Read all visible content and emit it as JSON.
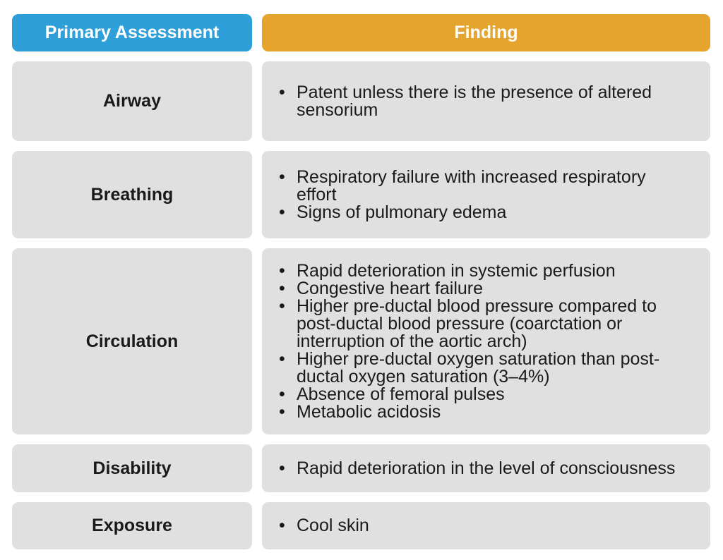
{
  "colors": {
    "page_bg": "#ffffff",
    "primary_header_bg": "#2e9fd9",
    "finding_header_bg": "#e4a42e",
    "header_text": "#ffffff",
    "cell_bg": "#e0e0e0",
    "body_text": "#1a1a1a"
  },
  "table": {
    "headers": [
      {
        "id": "primary-assessment",
        "label": "Primary Assessment"
      },
      {
        "id": "finding",
        "label": "Finding"
      }
    ],
    "bullet_glyph": "•",
    "rows": [
      {
        "assessment": "Airway",
        "findings": [
          "Patent unless there is the presence of altered sensorium"
        ]
      },
      {
        "assessment": "Breathing",
        "findings": [
          "Respiratory failure with increased respiratory effort",
          "Signs of pulmonary edema"
        ]
      },
      {
        "assessment": "Circulation",
        "findings": [
          "Rapid deterioration in systemic perfusion",
          "Congestive heart failure",
          "Higher pre-ductal blood pressure compared to post-ductal blood pressure (coarctation or interruption of the aortic arch)",
          "Higher pre-ductal oxygen saturation than post-ductal oxygen saturation (3–4%)",
          "Absence of femoral pulses",
          "Metabolic acidosis"
        ]
      },
      {
        "assessment": "Disability",
        "findings": [
          "Rapid deterioration in the level of consciousness"
        ]
      },
      {
        "assessment": "Exposure",
        "findings": [
          "Cool skin"
        ]
      }
    ]
  }
}
